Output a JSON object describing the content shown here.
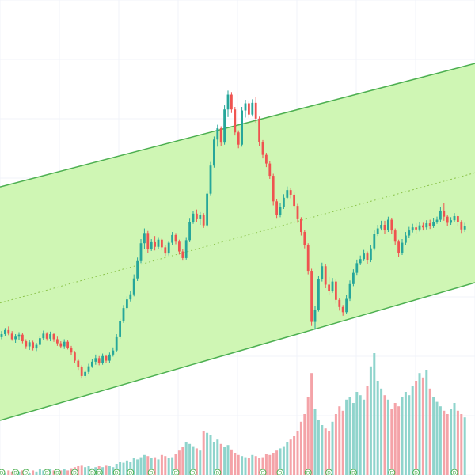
{
  "chart_data": {
    "type": "candlestick",
    "title": "",
    "xlabel": "",
    "ylabel": "",
    "grid": true,
    "ylim": [
      0,
      100
    ],
    "volume_ylim": [
      0,
      100
    ],
    "colors": {
      "background": "#ffffff",
      "grid": "#f0f3fa",
      "up": "#26a69a",
      "down": "#ef5350",
      "volume_up": "#8fd4cc",
      "volume_down": "#f4a3a8",
      "channel_fill": "#ccf5b0",
      "channel_line": "#4caf50",
      "midline": "#8bc34a",
      "marker": "#4caf50"
    },
    "channel": {
      "upper": [
        [
          0,
          87.5
        ],
        [
          137,
          111.8
        ]
      ],
      "lower": [
        [
          0,
          41.8
        ],
        [
          137,
          68.9
        ]
      ],
      "middle": [
        [
          0,
          64.8
        ],
        [
          137,
          90.4
        ]
      ]
    },
    "candles": [
      [
        58.0,
        59.2,
        57.6,
        58.6
      ],
      [
        58.6,
        59.8,
        58.2,
        59.4
      ],
      [
        59.4,
        60.1,
        58.4,
        58.7
      ],
      [
        58.7,
        59.2,
        57.3,
        57.6
      ],
      [
        57.6,
        58.6,
        56.9,
        58.1
      ],
      [
        58.1,
        59.0,
        57.4,
        58.5
      ],
      [
        58.5,
        58.8,
        56.8,
        57.2
      ],
      [
        57.2,
        57.6,
        55.7,
        56.2
      ],
      [
        56.2,
        57.5,
        55.5,
        57.0
      ],
      [
        57.0,
        57.3,
        55.4,
        55.8
      ],
      [
        55.8,
        56.9,
        55.3,
        56.5
      ],
      [
        56.5,
        58.2,
        56.1,
        57.8
      ],
      [
        57.8,
        59.3,
        57.5,
        58.7
      ],
      [
        58.7,
        59.0,
        57.3,
        57.7
      ],
      [
        57.7,
        59.1,
        57.2,
        58.6
      ],
      [
        58.6,
        58.9,
        57.1,
        57.6
      ],
      [
        57.6,
        58.1,
        56.3,
        56.8
      ],
      [
        56.8,
        57.2,
        55.8,
        56.2
      ],
      [
        56.2,
        57.6,
        55.7,
        57.1
      ],
      [
        57.1,
        57.5,
        55.6,
        55.9
      ],
      [
        55.9,
        56.3,
        54.5,
        55.0
      ],
      [
        55.0,
        55.3,
        53.0,
        53.4
      ],
      [
        53.4,
        53.8,
        51.6,
        52.2
      ],
      [
        52.2,
        52.5,
        49.9,
        50.4
      ],
      [
        50.4,
        51.6,
        50.0,
        51.2
      ],
      [
        51.2,
        52.8,
        50.8,
        52.3
      ],
      [
        52.3,
        53.7,
        52.0,
        53.2
      ],
      [
        53.2,
        54.6,
        52.6,
        53.9
      ],
      [
        53.9,
        54.3,
        52.5,
        53.0
      ],
      [
        53.0,
        54.8,
        52.6,
        54.3
      ],
      [
        54.3,
        54.6,
        52.9,
        53.4
      ],
      [
        53.4,
        55.0,
        53.0,
        54.6
      ],
      [
        54.6,
        56.0,
        54.2,
        55.4
      ],
      [
        55.4,
        58.6,
        55.1,
        58.0
      ],
      [
        58.0,
        61.6,
        57.7,
        61.1
      ],
      [
        61.1,
        64.3,
        60.8,
        63.7
      ],
      [
        63.7,
        66.0,
        63.3,
        65.4
      ],
      [
        65.4,
        67.0,
        65.0,
        66.4
      ],
      [
        66.4,
        70.3,
        66.0,
        69.5
      ],
      [
        69.5,
        73.6,
        69.0,
        72.9
      ],
      [
        72.9,
        77.2,
        72.5,
        76.4
      ],
      [
        76.4,
        79.3,
        75.3,
        78.4
      ],
      [
        78.4,
        78.8,
        74.5,
        75.3
      ],
      [
        75.3,
        77.2,
        74.9,
        76.6
      ],
      [
        76.6,
        77.8,
        75.0,
        75.7
      ],
      [
        75.7,
        77.6,
        75.3,
        77.1
      ],
      [
        77.1,
        77.4,
        75.0,
        75.6
      ],
      [
        75.6,
        76.0,
        73.9,
        74.4
      ],
      [
        74.4,
        76.9,
        74.0,
        76.5
      ],
      [
        76.5,
        78.6,
        76.1,
        78.0
      ],
      [
        78.0,
        78.4,
        76.2,
        76.7
      ],
      [
        76.7,
        77.1,
        74.2,
        74.8
      ],
      [
        74.8,
        75.2,
        73.0,
        73.5
      ],
      [
        73.5,
        77.6,
        73.2,
        77.0
      ],
      [
        77.0,
        81.2,
        76.6,
        80.6
      ],
      [
        80.6,
        82.8,
        80.2,
        82.2
      ],
      [
        82.2,
        83.0,
        80.6,
        81.1
      ],
      [
        81.1,
        82.5,
        80.0,
        81.9
      ],
      [
        81.9,
        82.3,
        79.4,
        79.9
      ],
      [
        79.9,
        86.7,
        79.5,
        86.1
      ],
      [
        86.1,
        92.3,
        85.8,
        91.6
      ],
      [
        91.6,
        97.3,
        91.2,
        96.7
      ],
      [
        96.7,
        99.6,
        95.3,
        98.9
      ],
      [
        98.9,
        99.3,
        95.4,
        96.1
      ],
      [
        96.1,
        103.4,
        95.7,
        102.6
      ],
      [
        102.6,
        106.3,
        101.1,
        105.5
      ],
      [
        105.5,
        106.0,
        101.9,
        102.6
      ],
      [
        102.6,
        103.1,
        97.5,
        98.1
      ],
      [
        98.1,
        98.5,
        95.0,
        95.7
      ],
      [
        95.7,
        103.1,
        95.3,
        102.4
      ],
      [
        102.4,
        104.5,
        101.0,
        103.8
      ],
      [
        103.8,
        104.2,
        100.9,
        101.6
      ],
      [
        101.6,
        104.6,
        101.2,
        103.9
      ],
      [
        103.9,
        105.0,
        100.0,
        100.8
      ],
      [
        100.8,
        101.2,
        95.5,
        96.2
      ],
      [
        96.2,
        96.6,
        93.0,
        93.7
      ],
      [
        93.7,
        94.1,
        91.3,
        92.0
      ],
      [
        92.0,
        92.4,
        89.0,
        89.6
      ],
      [
        89.6,
        90.0,
        83.8,
        84.6
      ],
      [
        84.6,
        85.0,
        81.2,
        81.9
      ],
      [
        81.9,
        84.2,
        81.5,
        83.5
      ],
      [
        83.5,
        86.0,
        83.1,
        85.3
      ],
      [
        85.3,
        87.5,
        85.0,
        86.8
      ],
      [
        86.8,
        87.2,
        85.2,
        85.9
      ],
      [
        85.9,
        86.3,
        83.0,
        83.7
      ],
      [
        83.7,
        84.1,
        80.4,
        81.1
      ],
      [
        81.1,
        81.5,
        77.9,
        78.6
      ],
      [
        78.6,
        79.0,
        75.4,
        76.0
      ],
      [
        76.0,
        76.4,
        70.3,
        71.0
      ],
      [
        71.0,
        71.4,
        60.2,
        61.0
      ],
      [
        61.0,
        64.1,
        59.5,
        63.4
      ],
      [
        63.4,
        70.0,
        63.0,
        69.3
      ],
      [
        69.3,
        72.6,
        68.9,
        71.9
      ],
      [
        71.9,
        72.3,
        67.6,
        68.3
      ],
      [
        68.3,
        69.8,
        66.3,
        67.1
      ],
      [
        67.1,
        69.6,
        66.7,
        68.9
      ],
      [
        68.9,
        69.3,
        64.6,
        65.3
      ],
      [
        65.3,
        65.7,
        63.2,
        63.9
      ],
      [
        63.9,
        64.3,
        62.2,
        62.9
      ],
      [
        62.9,
        66.2,
        62.5,
        65.5
      ],
      [
        65.5,
        69.1,
        65.1,
        68.4
      ],
      [
        68.4,
        71.3,
        68.0,
        70.6
      ],
      [
        70.6,
        73.2,
        70.2,
        72.5
      ],
      [
        72.5,
        74.0,
        72.1,
        73.3
      ],
      [
        73.3,
        75.1,
        72.9,
        74.4
      ],
      [
        74.4,
        74.8,
        72.4,
        73.1
      ],
      [
        73.1,
        76.1,
        72.7,
        75.4
      ],
      [
        75.4,
        78.9,
        75.0,
        78.2
      ],
      [
        78.2,
        80.0,
        77.8,
        79.3
      ],
      [
        79.3,
        80.8,
        78.9,
        80.0
      ],
      [
        80.0,
        80.8,
        78.3,
        79.0
      ],
      [
        79.0,
        81.6,
        78.6,
        81.0
      ],
      [
        81.0,
        81.4,
        78.2,
        78.9
      ],
      [
        78.9,
        79.3,
        76.0,
        76.7
      ],
      [
        76.7,
        77.1,
        73.8,
        74.5
      ],
      [
        74.5,
        77.2,
        74.1,
        76.5
      ],
      [
        76.5,
        78.6,
        76.1,
        77.9
      ],
      [
        77.9,
        79.6,
        77.5,
        78.9
      ],
      [
        78.9,
        80.2,
        78.5,
        79.5
      ],
      [
        79.5,
        80.3,
        78.2,
        79.1
      ],
      [
        79.1,
        80.6,
        78.7,
        79.9
      ],
      [
        79.9,
        80.4,
        78.9,
        79.5
      ],
      [
        79.5,
        80.9,
        79.1,
        80.3
      ],
      [
        80.3,
        81.0,
        79.2,
        79.8
      ],
      [
        79.8,
        81.3,
        79.4,
        80.6
      ],
      [
        80.6,
        81.6,
        80.2,
        81.0
      ],
      [
        81.0,
        83.5,
        80.6,
        82.8
      ],
      [
        82.8,
        84.2,
        80.8,
        81.6
      ],
      [
        81.6,
        82.0,
        79.7,
        80.4
      ],
      [
        80.4,
        81.5,
        80.0,
        80.9
      ],
      [
        80.9,
        82.3,
        80.5,
        81.7
      ],
      [
        81.7,
        82.1,
        79.8,
        80.5
      ],
      [
        80.5,
        80.9,
        78.4,
        79.1
      ],
      [
        79.1,
        80.4,
        78.6,
        79.7
      ]
    ],
    "volume": [
      3,
      2,
      4,
      3,
      2,
      3,
      4,
      3,
      2,
      4,
      3,
      5,
      4,
      3,
      5,
      4,
      3,
      4,
      5,
      4,
      6,
      7,
      8,
      9,
      7,
      8,
      6,
      7,
      8,
      7,
      9,
      8,
      7,
      10,
      12,
      11,
      13,
      12,
      15,
      14,
      16,
      18,
      17,
      15,
      16,
      14,
      18,
      17,
      15,
      16,
      19,
      22,
      25,
      30,
      28,
      26,
      24,
      22,
      40,
      38,
      36,
      30,
      32,
      28,
      25,
      27,
      23,
      20,
      18,
      17,
      16,
      15,
      18,
      17,
      15,
      16,
      19,
      18,
      20,
      22,
      24,
      26,
      30,
      32,
      35,
      40,
      48,
      55,
      70,
      92,
      60,
      50,
      45,
      42,
      40,
      48,
      55,
      62,
      58,
      68,
      70,
      65,
      75,
      72,
      68,
      80,
      98,
      110,
      85,
      78,
      72,
      68,
      60,
      65,
      62,
      70,
      75,
      72,
      80,
      85,
      92,
      88,
      95,
      78,
      70,
      66,
      62,
      58,
      55,
      60,
      65,
      58,
      55,
      52,
      50,
      52,
      48,
      46
    ],
    "markers": [
      {
        "index": 0,
        "label": "D"
      },
      {
        "index": 4,
        "label": "D"
      },
      {
        "index": 7,
        "label": "D"
      },
      {
        "index": 13,
        "label": "D"
      },
      {
        "index": 16,
        "label": "D"
      },
      {
        "index": 21,
        "label": "D"
      },
      {
        "index": 26,
        "label": "D"
      },
      {
        "index": 28,
        "label": "D"
      },
      {
        "index": 33,
        "label": "D"
      },
      {
        "index": 37,
        "label": "D"
      },
      {
        "index": 43,
        "label": "D"
      },
      {
        "index": 50,
        "label": "D"
      },
      {
        "index": 55,
        "label": "D"
      },
      {
        "index": 62,
        "label": "D"
      },
      {
        "index": 75,
        "label": "D"
      },
      {
        "index": 80,
        "label": "D"
      },
      {
        "index": 88,
        "label": "D"
      },
      {
        "index": 94,
        "label": "D"
      },
      {
        "index": 101,
        "label": "D"
      },
      {
        "index": 112,
        "label": "D"
      },
      {
        "index": 119,
        "label": "D"
      },
      {
        "index": 130,
        "label": "D"
      }
    ]
  }
}
